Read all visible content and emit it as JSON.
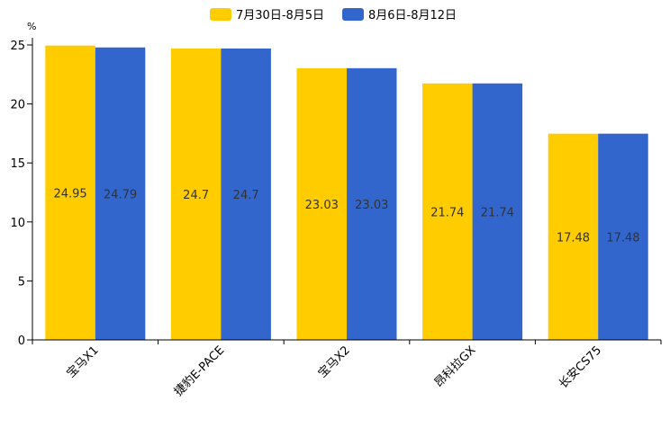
{
  "chart_data": {
    "type": "bar",
    "title": "",
    "xlabel": "",
    "ylabel": "%",
    "ylim": [
      0,
      25
    ],
    "yticks": [
      0,
      5,
      10,
      15,
      20,
      25
    ],
    "grid": false,
    "legend_position": "top-center",
    "categories": [
      "宝马X1",
      "捷豹E-PACE",
      "宝马X2",
      "昂科拉GX",
      "长安CS75"
    ],
    "series": [
      {
        "name": "7月30日-8月5日",
        "color": "#FFCC00",
        "values": [
          24.95,
          24.7,
          23.03,
          21.74,
          17.48
        ]
      },
      {
        "name": "8月6日-8月12日",
        "color": "#3366CC",
        "values": [
          24.79,
          24.7,
          23.03,
          21.74,
          17.48
        ]
      }
    ],
    "value_labels": [
      [
        "24.95",
        "24.7",
        "23.03",
        "21.74",
        "17.48"
      ],
      [
        "24.79",
        "24.7",
        "23.03",
        "21.74",
        "17.48"
      ]
    ]
  }
}
